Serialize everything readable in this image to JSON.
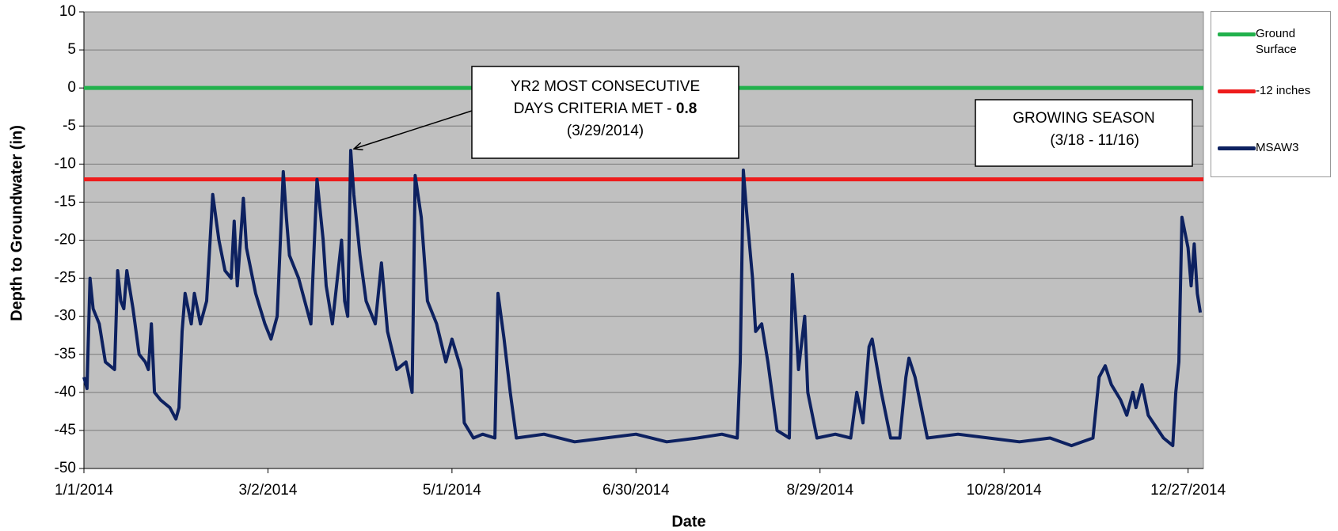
{
  "chart_data": {
    "type": "line",
    "ylabel": "Depth to Groundwater (in)",
    "xlabel": "Date",
    "xlim": [
      "1/1/2014",
      "1/1/2015"
    ],
    "xticks": [
      "1/1/2014",
      "3/2/2014",
      "5/1/2014",
      "6/30/2014",
      "8/29/2014",
      "10/28/2014",
      "12/27/2014"
    ],
    "ylim": [
      -50,
      10
    ],
    "yticks": [
      10,
      5,
      0,
      -5,
      -10,
      -15,
      -20,
      -25,
      -30,
      -35,
      -40,
      -45,
      -50
    ],
    "grid": true,
    "background": "#c0c0c0",
    "legend": "right",
    "reference_lines": [
      {
        "name": "Ground Surface",
        "value": 0,
        "color": "#22b14c"
      },
      {
        "name": "-12 inches",
        "value": -12,
        "color": "#ee1c1c"
      }
    ],
    "x": [
      "1/1/2014",
      "1/2/2014",
      "1/3/2014",
      "1/4/2014",
      "1/6/2014",
      "1/8/2014",
      "1/11/2014",
      "1/12/2014",
      "1/13/2014",
      "1/14/2014",
      "1/15/2014",
      "1/17/2014",
      "1/19/2014",
      "1/21/2014",
      "1/22/2014",
      "1/23/2014",
      "1/24/2014",
      "1/26/2014",
      "1/29/2014",
      "1/31/2014",
      "2/1/2014",
      "2/2/2014",
      "2/3/2014",
      "2/5/2014",
      "2/6/2014",
      "2/8/2014",
      "2/10/2014",
      "2/12/2014",
      "2/14/2014",
      "2/16/2014",
      "2/18/2014",
      "2/19/2014",
      "2/20/2014",
      "2/22/2014",
      "2/23/2014",
      "2/26/2014",
      "3/1/2014",
      "3/3/2014",
      "3/5/2014",
      "3/7/2014",
      "3/8/2014",
      "3/9/2014",
      "3/12/2014",
      "3/14/2014",
      "3/16/2014",
      "3/18/2014",
      "3/20/2014",
      "3/21/2014",
      "3/23/2014",
      "3/26/2014",
      "3/27/2014",
      "3/28/2014",
      "3/29/2014",
      "3/30/2014",
      "4/1/2014",
      "4/3/2014",
      "4/6/2014",
      "4/8/2014",
      "4/10/2014",
      "4/13/2014",
      "4/16/2014",
      "4/18/2014",
      "4/19/2014",
      "4/21/2014",
      "4/23/2014",
      "4/26/2014",
      "4/29/2014",
      "5/1/2014",
      "5/4/2014",
      "5/5/2014",
      "5/8/2014",
      "5/11/2014",
      "5/15/2014",
      "5/16/2014",
      "5/18/2014",
      "5/20/2014",
      "5/22/2014",
      "5/31/2014",
      "6/10/2014",
      "6/20/2014",
      "6/30/2014",
      "7/10/2014",
      "7/20/2014",
      "7/28/2014",
      "8/2/2014",
      "8/3/2014",
      "8/4/2014",
      "8/5/2014",
      "8/7/2014",
      "8/8/2014",
      "8/10/2014",
      "8/12/2014",
      "8/15/2014",
      "8/19/2014",
      "8/20/2014",
      "8/21/2014",
      "8/22/2014",
      "8/24/2014",
      "8/25/2014",
      "8/28/2014",
      "9/3/2014",
      "9/8/2014",
      "9/10/2014",
      "9/12/2014",
      "9/14/2014",
      "9/15/2014",
      "9/18/2014",
      "9/21/2014",
      "9/24/2014",
      "9/26/2014",
      "9/27/2014",
      "9/29/2014",
      "10/1/2014",
      "10/3/2014",
      "10/13/2014",
      "10/23/2014",
      "11/2/2014",
      "11/12/2014",
      "11/19/2014",
      "11/26/2014",
      "11/28/2014",
      "11/30/2014",
      "12/2/2014",
      "12/5/2014",
      "12/7/2014",
      "12/9/2014",
      "12/10/2014",
      "12/12/2014",
      "12/14/2014",
      "12/19/2014",
      "12/22/2014",
      "12/23/2014",
      "12/24/2014",
      "12/25/2014",
      "12/27/2014",
      "12/28/2014",
      "12/29/2014",
      "12/30/2014",
      "12/31/2014"
    ],
    "series": [
      {
        "name": "MSAW3",
        "color": "#0d2160",
        "values": [
          -38,
          -39.5,
          -25,
          -29,
          -31,
          -36,
          -37,
          -24,
          -28,
          -29,
          -24,
          -29,
          -35,
          -36,
          -37,
          -31,
          -40,
          -41,
          -42,
          -43.5,
          -42,
          -32,
          -27,
          -31,
          -27,
          -31,
          -28,
          -14,
          -20,
          -24,
          -25,
          -17.5,
          -26,
          -14.5,
          -21,
          -27,
          -31,
          -33,
          -30,
          -11,
          -17,
          -22,
          -25,
          -28,
          -31,
          -12,
          -20,
          -26,
          -31,
          -20,
          -28,
          -30,
          -8.2,
          -14,
          -22,
          -28,
          -31,
          -23,
          -32,
          -37,
          -36,
          -40,
          -11.5,
          -17,
          -28,
          -31,
          -36,
          -33,
          -37,
          -44,
          -46,
          -45.5,
          -46,
          -27,
          -33,
          -40,
          -46,
          -45.5,
          -46.5,
          -46,
          -45.5,
          -46.5,
          -46,
          -45.5,
          -46,
          -36,
          -10.8,
          -16,
          -25,
          -32,
          -31,
          -36,
          -45,
          -46,
          -24.5,
          -30,
          -37,
          -30,
          -40,
          -46,
          -45.5,
          -46,
          -40,
          -44,
          -34,
          -33,
          -40,
          -46,
          -46,
          -38,
          -35.5,
          -38,
          -42,
          -46,
          -45.5,
          -46,
          -46.5,
          -46,
          -47,
          -46,
          -38,
          -36.5,
          -39,
          -41,
          -43,
          -40,
          -42,
          -39,
          -43,
          -46,
          -47,
          -40,
          -36,
          -17,
          -21,
          -26,
          -20.5,
          -27,
          -29.5
        ]
      }
    ],
    "annotations": [
      {
        "lines": [
          "YR2 MOST CONSECUTIVE",
          "DAYS CRITERIA MET - ",
          "(3/29/2014)"
        ],
        "emphasis": "0.8"
      },
      {
        "lines": [
          "GROWING SEASON",
          "(3/18 - 11/16)"
        ]
      }
    ]
  }
}
